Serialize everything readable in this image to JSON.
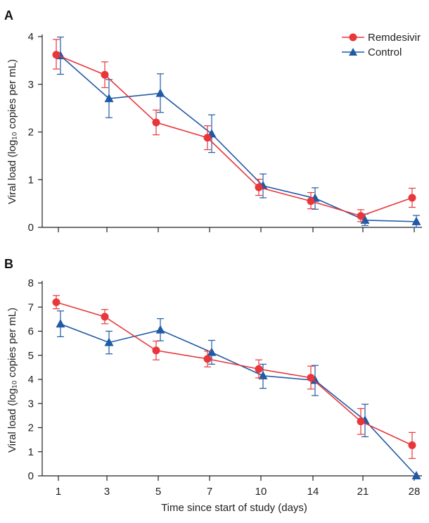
{
  "colors": {
    "remdesivir": "#e8363a",
    "control": "#1f5aa6",
    "axis": "#222222"
  },
  "chart_data": [
    {
      "type": "line",
      "panel_label": "A",
      "title": "",
      "xlabel": "",
      "ylabel": "Viral load (log₁₀ copies per mL)",
      "categories": [
        "1",
        "3",
        "5",
        "7",
        "10",
        "14",
        "21",
        "28"
      ],
      "ylim": [
        0,
        4
      ],
      "yticks": [
        "0",
        "1",
        "2",
        "3",
        "4"
      ],
      "grid": false,
      "legend": "top-right",
      "series": [
        {
          "name": "Remdesivir",
          "marker": "circle",
          "values": [
            3.62,
            3.2,
            2.2,
            1.88,
            0.84,
            0.55,
            0.24,
            0.62
          ],
          "err_low": [
            3.32,
            2.93,
            1.94,
            1.63,
            0.67,
            0.39,
            0.12,
            0.42
          ],
          "err_high": [
            3.94,
            3.47,
            2.46,
            2.13,
            1.01,
            0.73,
            0.37,
            0.82
          ]
        },
        {
          "name": "Control",
          "marker": "triangle",
          "values": [
            3.6,
            2.7,
            2.81,
            1.96,
            0.87,
            0.61,
            0.15,
            0.12
          ],
          "err_low": [
            3.21,
            2.3,
            2.41,
            1.57,
            0.62,
            0.38,
            0.04,
            0.0
          ],
          "err_high": [
            3.99,
            3.1,
            3.22,
            2.36,
            1.12,
            0.83,
            0.28,
            0.25
          ]
        }
      ]
    },
    {
      "type": "line",
      "panel_label": "B",
      "title": "",
      "xlabel": "Time since start of study (days)",
      "ylabel": "Viral load (log₁₀ copies per mL)",
      "categories": [
        "1",
        "3",
        "5",
        "7",
        "10",
        "14",
        "21",
        "28"
      ],
      "ylim": [
        0,
        8
      ],
      "yticks": [
        "0",
        "1",
        "2",
        "3",
        "4",
        "5",
        "6",
        "7",
        "8"
      ],
      "grid": false,
      "legend": "",
      "series": [
        {
          "name": "Remdesivir",
          "marker": "circle",
          "values": [
            7.2,
            6.6,
            5.2,
            4.85,
            4.43,
            4.07,
            2.26,
            1.27
          ],
          "err_low": [
            6.93,
            6.31,
            4.81,
            4.52,
            4.06,
            3.6,
            1.72,
            0.72
          ],
          "err_high": [
            7.48,
            6.9,
            5.59,
            5.17,
            4.81,
            4.55,
            2.79,
            1.8
          ]
        },
        {
          "name": "Control",
          "marker": "triangle",
          "values": [
            6.3,
            5.53,
            6.05,
            5.12,
            4.15,
            3.96,
            2.3,
            0.0
          ],
          "err_low": [
            5.77,
            5.06,
            5.6,
            4.63,
            3.63,
            3.33,
            1.62,
            0.0
          ],
          "err_high": [
            6.84,
            6.0,
            6.52,
            5.62,
            4.63,
            4.58,
            2.97,
            0.0
          ]
        }
      ]
    }
  ]
}
